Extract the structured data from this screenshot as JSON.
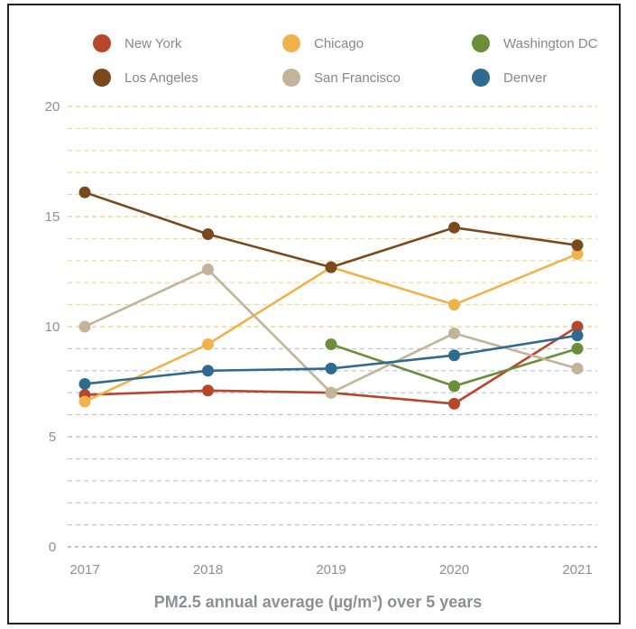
{
  "chart_data": {
    "type": "line",
    "title": "",
    "subtitle": "PM2.5 annual average (µg/m³) over 5 years",
    "xlabel": "",
    "ylabel": "",
    "x": [
      "2017",
      "2018",
      "2019",
      "2020",
      "2021"
    ],
    "ylim": [
      0,
      20
    ],
    "yticks": [
      0,
      5,
      10,
      15,
      20
    ],
    "grid": true,
    "legend_position": "top",
    "series": [
      {
        "name": "New York",
        "color": "#b7472a",
        "values": [
          6.9,
          7.1,
          7.0,
          6.5,
          10.0
        ]
      },
      {
        "name": "Chicago",
        "color": "#f0b24a",
        "values": [
          6.6,
          9.2,
          12.7,
          11.0,
          13.3
        ]
      },
      {
        "name": "Washington DC",
        "color": "#6b8e3a",
        "values": [
          null,
          null,
          9.2,
          7.3,
          9.0
        ]
      },
      {
        "name": "Los Angeles",
        "color": "#7a4a1e",
        "values": [
          16.1,
          14.2,
          12.7,
          14.5,
          13.7
        ]
      },
      {
        "name": "San Francisco",
        "color": "#c2b49a",
        "values": [
          10.0,
          12.6,
          7.0,
          9.7,
          8.1
        ]
      },
      {
        "name": "Denver",
        "color": "#2e6b8e",
        "values": [
          7.4,
          8.0,
          8.1,
          8.7,
          9.6
        ]
      }
    ]
  }
}
